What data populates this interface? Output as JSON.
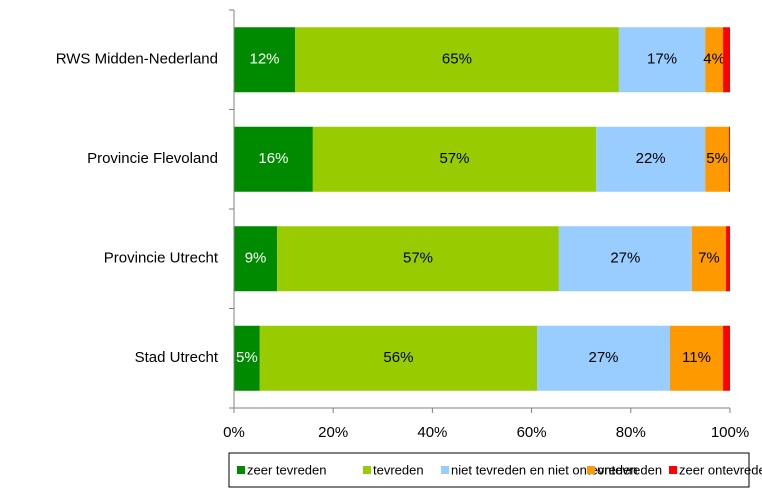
{
  "chart_data": {
    "type": "stacked_barh",
    "categories": [
      "RWS Midden-Nederland",
      "Provincie Flevoland",
      "Provincie Utrecht",
      "Stad Utrecht"
    ],
    "series": [
      {
        "name": "zeer tevreden",
        "color": "#008a00",
        "values": [
          12.3,
          15.9,
          8.7,
          5.2
        ],
        "value_labels": [
          "12%",
          "16%",
          "9%",
          "5%"
        ]
      },
      {
        "name": "tevreden",
        "color": "#99cc00",
        "values": [
          65.3,
          57.1,
          56.8,
          55.9
        ],
        "value_labels": [
          "65%",
          "57%",
          "57%",
          "56%"
        ]
      },
      {
        "name": "niet tevreden en niet ontevreden",
        "color": "#99ccff",
        "values": [
          17.4,
          22.0,
          26.8,
          26.8
        ],
        "value_labels": [
          "17%",
          "22%",
          "27%",
          "27%"
        ]
      },
      {
        "name": "ontevreden",
        "color": "#ff9900",
        "values": [
          3.6,
          4.8,
          6.9,
          10.7
        ],
        "value_labels": [
          "4%",
          "5%",
          "7%",
          "11%"
        ]
      },
      {
        "name": "zeer ontevreden",
        "color": "#ff0000",
        "values": [
          1.4,
          0.2,
          0.8,
          1.4
        ],
        "value_labels": [
          null,
          null,
          null,
          null
        ]
      }
    ],
    "xlim": [
      0,
      100
    ],
    "xticks": [
      {
        "value": 0,
        "label": "0%"
      },
      {
        "value": 20,
        "label": "20%"
      },
      {
        "value": 40,
        "label": "40%"
      },
      {
        "value": 60,
        "label": "60%"
      },
      {
        "value": 80,
        "label": "80%"
      },
      {
        "value": 100,
        "label": "100%"
      }
    ],
    "legend": "bottom"
  }
}
